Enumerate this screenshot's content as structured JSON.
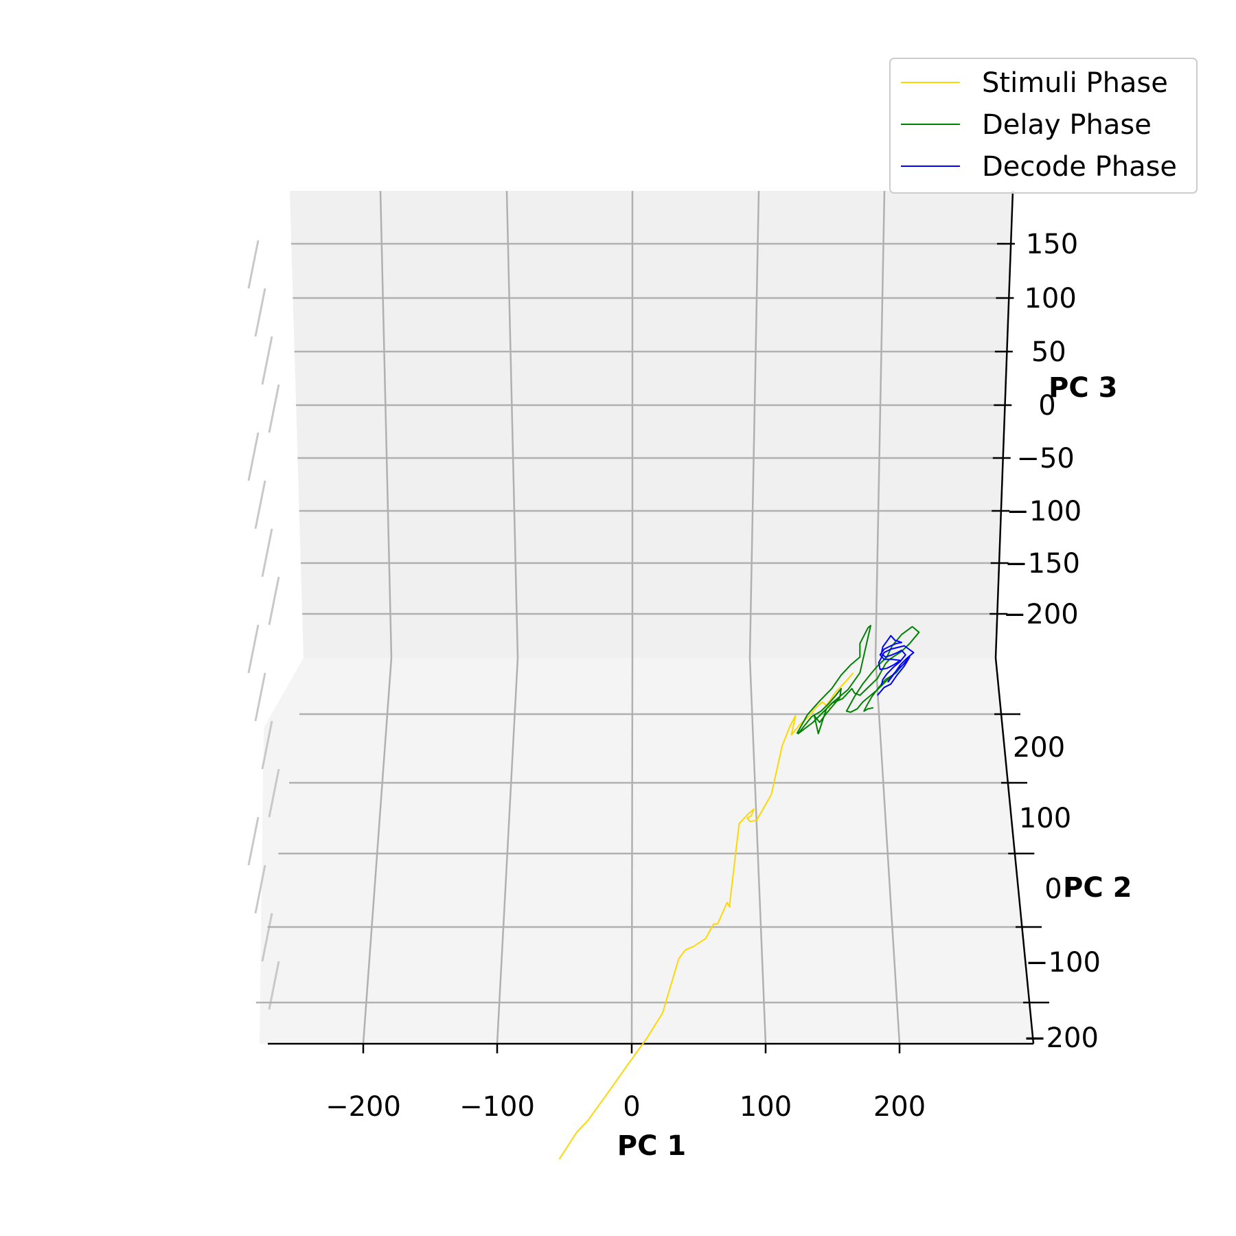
{
  "chart_data": {
    "type": "line",
    "projection": "3d",
    "axes": {
      "x": {
        "label": "PC 1",
        "ticks": [
          -200,
          -100,
          0,
          100,
          200
        ],
        "tick_labels": [
          "−200",
          "−100",
          "0",
          "100",
          "200"
        ]
      },
      "y": {
        "label": "PC 2",
        "ticks": [
          200,
          100,
          0,
          -100,
          -200
        ],
        "tick_labels": [
          "200",
          "100",
          "0",
          "−100",
          "−200"
        ]
      },
      "z": {
        "label": "PC 3",
        "ticks": [
          150,
          100,
          50,
          0,
          -50,
          -100,
          -150,
          -200
        ],
        "tick_labels": [
          "150",
          "100",
          "50",
          "0",
          "−50",
          "−100",
          "−150",
          "−200"
        ]
      }
    },
    "grid": true,
    "legend_position": "top-right",
    "series": [
      {
        "name": "Stimuli Phase",
        "color": "#FFD700",
        "points": [
          [
            -54,
            -138
          ],
          [
            -47,
            -125
          ],
          [
            -41,
            -114
          ],
          [
            -33,
            -104
          ],
          [
            -19,
            -81
          ],
          [
            -3,
            -54
          ],
          [
            11,
            -31
          ],
          [
            23,
            -8
          ],
          [
            35,
            40
          ],
          [
            40,
            48
          ],
          [
            46,
            51
          ],
          [
            55,
            58
          ],
          [
            61,
            71
          ],
          [
            64,
            71
          ],
          [
            71,
            90
          ],
          [
            73,
            86
          ],
          [
            73,
            89
          ],
          [
            80,
            160
          ],
          [
            87,
            169
          ],
          [
            91,
            173
          ],
          [
            89,
            167
          ],
          [
            86,
            165
          ],
          [
            88,
            162
          ],
          [
            93,
            163
          ],
          [
            104,
            186
          ],
          [
            112,
            229
          ],
          [
            118,
            247
          ],
          [
            122,
            256
          ],
          [
            119,
            239
          ],
          [
            126,
            249
          ],
          [
            131,
            254
          ],
          [
            138,
            264
          ],
          [
            142,
            268
          ],
          [
            148,
            262
          ],
          [
            145,
            265
          ],
          [
            152,
            277
          ],
          [
            160,
            287
          ],
          [
            165,
            294
          ]
        ]
      },
      {
        "name": "Delay Phase",
        "color": "#008000",
        "points": [
          [
            123,
            240
          ],
          [
            131,
            257
          ],
          [
            140,
            269
          ],
          [
            149,
            280
          ],
          [
            156,
            292
          ],
          [
            163,
            301
          ],
          [
            170,
            308
          ],
          [
            170,
            320
          ],
          [
            176,
            334
          ],
          [
            178,
            336
          ],
          [
            170,
            294
          ],
          [
            161,
            279
          ],
          [
            150,
            268
          ],
          [
            135,
            250
          ],
          [
            124,
            240
          ],
          [
            134,
            255
          ],
          [
            141,
            260
          ],
          [
            147,
            267
          ],
          [
            152,
            274
          ],
          [
            156,
            280
          ],
          [
            155,
            272
          ],
          [
            145,
            258
          ],
          [
            140,
            250
          ],
          [
            136,
            256
          ],
          [
            139,
            240
          ],
          [
            145,
            262
          ],
          [
            149,
            267
          ],
          [
            157,
            271
          ],
          [
            164,
            280
          ],
          [
            166,
            276
          ],
          [
            170,
            274
          ],
          [
            183,
            289
          ],
          [
            189,
            302
          ],
          [
            192,
            306
          ],
          [
            201,
            313
          ],
          [
            207,
            320
          ],
          [
            214,
            330
          ],
          [
            209,
            335
          ],
          [
            201,
            328
          ],
          [
            194,
            318
          ],
          [
            190,
            308
          ],
          [
            183,
            300
          ],
          [
            178,
            293
          ],
          [
            172,
            284
          ],
          [
            166,
            273
          ],
          [
            160,
            260
          ],
          [
            163,
            259
          ],
          [
            168,
            262
          ],
          [
            172,
            268
          ],
          [
            176,
            272
          ],
          [
            182,
            278
          ],
          [
            189,
            286
          ],
          [
            196,
            294
          ],
          [
            201,
            300
          ],
          [
            197,
            294
          ],
          [
            189,
            288
          ],
          [
            184,
            281
          ],
          [
            179,
            273
          ],
          [
            176,
            267
          ],
          [
            173,
            260
          ],
          [
            176,
            262
          ],
          [
            180,
            263
          ]
        ]
      },
      {
        "name": "Decode Phase",
        "color": "#0000FF",
        "points": [
          [
            183,
            274
          ],
          [
            188,
            281
          ],
          [
            193,
            284
          ],
          [
            197,
            291
          ],
          [
            203,
            300
          ],
          [
            207,
            308
          ],
          [
            202,
            301
          ],
          [
            198,
            297
          ],
          [
            193,
            290
          ],
          [
            191,
            286
          ],
          [
            196,
            294
          ],
          [
            200,
            301
          ],
          [
            205,
            307
          ],
          [
            210,
            312
          ],
          [
            203,
            318
          ],
          [
            193,
            315
          ],
          [
            188,
            312
          ],
          [
            184,
            303
          ],
          [
            185,
            297
          ],
          [
            190,
            298
          ],
          [
            195,
            301
          ],
          [
            200,
            305
          ],
          [
            194,
            306
          ],
          [
            188,
            306
          ],
          [
            185,
            310
          ],
          [
            188,
            315
          ],
          [
            193,
            318
          ],
          [
            197,
            320
          ],
          [
            201,
            321
          ],
          [
            196,
            323
          ],
          [
            193,
            327
          ],
          [
            190,
            322
          ],
          [
            187,
            317
          ],
          [
            186,
            311
          ],
          [
            189,
            308
          ],
          [
            194,
            310
          ],
          [
            198,
            312
          ],
          [
            201,
            314
          ],
          [
            204,
            310
          ],
          [
            200,
            304
          ],
          [
            195,
            299
          ],
          [
            190,
            293
          ],
          [
            187,
            288
          ],
          [
            186,
            283
          ]
        ]
      }
    ]
  }
}
